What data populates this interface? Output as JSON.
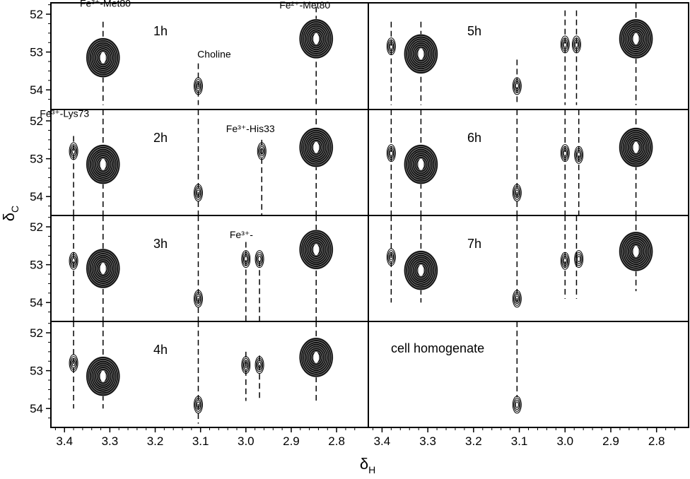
{
  "chart_data": {
    "type": "contour",
    "xlabel": "δ",
    "xlabel_sub": "H",
    "ylabel": "δ",
    "ylabel_sub": "C",
    "x_axis": {
      "reversed": true,
      "range": [
        3.43,
        2.73
      ],
      "ticks": [
        "3.4",
        "3.3",
        "3.2",
        "3.1",
        "3.0",
        "2.9",
        "2.8"
      ]
    },
    "y_axis": {
      "reversed": true,
      "range": [
        51.7,
        54.5
      ],
      "ticks": [
        "52",
        "53",
        "54"
      ]
    },
    "panels": [
      {
        "label": "1h",
        "annotations": [
          {
            "text": "Fe³⁺-Met80",
            "x": 3.31,
            "y": 51.8
          },
          {
            "text": "Choline",
            "x": 3.07,
            "y": 53.15
          },
          {
            "text": "Fe²⁺-Met80",
            "x": 2.87,
            "y": 51.85
          }
        ],
        "peaks": [
          {
            "x": 3.315,
            "y": 53.15,
            "size": "large"
          },
          {
            "x": 3.105,
            "y": 53.9,
            "size": "small"
          },
          {
            "x": 2.845,
            "y": 52.65,
            "size": "large"
          }
        ],
        "guides": [
          {
            "x": 3.315,
            "y1": 52.2,
            "y2": 54.4
          },
          {
            "x": 3.105,
            "y1": 53.3,
            "y2": 54.4
          },
          {
            "x": 2.845,
            "y1": 51.8,
            "y2": 54.4
          }
        ]
      },
      {
        "label": "2h",
        "annotations": [
          {
            "text": "Fe³⁺-Lys73",
            "x": 3.4,
            "y": 51.9
          },
          {
            "text": "Fe³⁺-His33",
            "x": 2.99,
            "y": 52.3
          }
        ],
        "peaks": [
          {
            "x": 3.38,
            "y": 52.8,
            "size": "small"
          },
          {
            "x": 3.315,
            "y": 53.15,
            "size": "large"
          },
          {
            "x": 3.105,
            "y": 53.9,
            "size": "small"
          },
          {
            "x": 2.965,
            "y": 52.8,
            "size": "small"
          },
          {
            "x": 2.845,
            "y": 52.7,
            "size": "large"
          }
        ],
        "guides": [
          {
            "x": 3.38,
            "y1": 52.4,
            "y2": 54.5
          },
          {
            "x": 3.315,
            "y1": 51.7,
            "y2": 54.5
          },
          {
            "x": 3.105,
            "y1": 51.7,
            "y2": 54.5
          },
          {
            "x": 2.965,
            "y1": 52.5,
            "y2": 54.5
          },
          {
            "x": 2.845,
            "y1": 51.7,
            "y2": 54.5
          }
        ]
      },
      {
        "label": "3h",
        "annotations": [
          {
            "text": "Fe³⁺-",
            "x": 3.01,
            "y": 52.3
          }
        ],
        "peaks": [
          {
            "x": 3.38,
            "y": 52.9,
            "size": "small"
          },
          {
            "x": 3.315,
            "y": 53.1,
            "size": "large"
          },
          {
            "x": 3.105,
            "y": 53.9,
            "size": "small"
          },
          {
            "x": 3.0,
            "y": 52.85,
            "size": "small"
          },
          {
            "x": 2.97,
            "y": 52.85,
            "size": "small"
          },
          {
            "x": 2.845,
            "y": 52.6,
            "size": "large"
          }
        ],
        "guides": [
          {
            "x": 3.38,
            "y1": 51.7,
            "y2": 54.5
          },
          {
            "x": 3.315,
            "y1": 51.7,
            "y2": 54.5
          },
          {
            "x": 3.105,
            "y1": 51.7,
            "y2": 54.5
          },
          {
            "x": 3.0,
            "y1": 52.4,
            "y2": 54.5
          },
          {
            "x": 2.97,
            "y1": 52.9,
            "y2": 54.5
          },
          {
            "x": 2.845,
            "y1": 51.7,
            "y2": 54.5
          }
        ]
      },
      {
        "label": "4h",
        "annotations": [],
        "peaks": [
          {
            "x": 3.38,
            "y": 52.8,
            "size": "small"
          },
          {
            "x": 3.315,
            "y": 53.15,
            "size": "large"
          },
          {
            "x": 3.105,
            "y": 53.9,
            "size": "small"
          },
          {
            "x": 3.0,
            "y": 52.85,
            "size": "small"
          },
          {
            "x": 2.97,
            "y": 52.85,
            "size": "small"
          },
          {
            "x": 2.845,
            "y": 52.65,
            "size": "large"
          }
        ],
        "guides": [
          {
            "x": 3.38,
            "y1": 51.7,
            "y2": 54.0
          },
          {
            "x": 3.315,
            "y1": 51.7,
            "y2": 54.0
          },
          {
            "x": 3.105,
            "y1": 51.7,
            "y2": 54.4
          },
          {
            "x": 3.0,
            "y1": 52.5,
            "y2": 53.8
          },
          {
            "x": 2.97,
            "y1": 52.6,
            "y2": 53.8
          },
          {
            "x": 2.845,
            "y1": 51.7,
            "y2": 53.8
          }
        ]
      },
      {
        "label": "5h",
        "annotations": [],
        "peaks": [
          {
            "x": 3.38,
            "y": 52.85,
            "size": "small"
          },
          {
            "x": 3.315,
            "y": 53.05,
            "size": "large"
          },
          {
            "x": 3.105,
            "y": 53.9,
            "size": "small"
          },
          {
            "x": 3.0,
            "y": 52.8,
            "size": "small"
          },
          {
            "x": 2.975,
            "y": 52.8,
            "size": "small"
          },
          {
            "x": 2.845,
            "y": 52.65,
            "size": "large"
          }
        ],
        "guides": [
          {
            "x": 3.38,
            "y1": 52.2,
            "y2": 54.4
          },
          {
            "x": 3.315,
            "y1": 52.2,
            "y2": 54.4
          },
          {
            "x": 3.105,
            "y1": 53.2,
            "y2": 54.4
          },
          {
            "x": 3.0,
            "y1": 51.9,
            "y2": 54.4
          },
          {
            "x": 2.975,
            "y1": 51.9,
            "y2": 54.4
          },
          {
            "x": 2.845,
            "y1": 51.7,
            "y2": 54.4
          }
        ]
      },
      {
        "label": "6h",
        "annotations": [],
        "peaks": [
          {
            "x": 3.38,
            "y": 52.85,
            "size": "small"
          },
          {
            "x": 3.315,
            "y": 53.15,
            "size": "large"
          },
          {
            "x": 3.105,
            "y": 53.9,
            "size": "small"
          },
          {
            "x": 3.0,
            "y": 52.85,
            "size": "small"
          },
          {
            "x": 2.97,
            "y": 52.9,
            "size": "small"
          },
          {
            "x": 2.845,
            "y": 52.7,
            "size": "large"
          }
        ],
        "guides": [
          {
            "x": 3.38,
            "y1": 51.7,
            "y2": 54.5
          },
          {
            "x": 3.315,
            "y1": 51.7,
            "y2": 54.5
          },
          {
            "x": 3.105,
            "y1": 51.7,
            "y2": 54.5
          },
          {
            "x": 3.0,
            "y1": 51.7,
            "y2": 54.5
          },
          {
            "x": 2.97,
            "y1": 51.7,
            "y2": 54.5
          },
          {
            "x": 2.845,
            "y1": 51.7,
            "y2": 54.5
          }
        ]
      },
      {
        "label": "7h",
        "annotations": [],
        "peaks": [
          {
            "x": 3.38,
            "y": 52.8,
            "size": "small"
          },
          {
            "x": 3.315,
            "y": 53.15,
            "size": "large"
          },
          {
            "x": 3.105,
            "y": 53.9,
            "size": "small"
          },
          {
            "x": 3.0,
            "y": 52.9,
            "size": "small"
          },
          {
            "x": 2.97,
            "y": 52.85,
            "size": "small"
          },
          {
            "x": 2.845,
            "y": 52.65,
            "size": "large"
          }
        ],
        "guides": [
          {
            "x": 3.38,
            "y1": 51.7,
            "y2": 54.0
          },
          {
            "x": 3.315,
            "y1": 51.7,
            "y2": 54.0
          },
          {
            "x": 3.105,
            "y1": 51.7,
            "y2": 54.0
          },
          {
            "x": 3.0,
            "y1": 51.7,
            "y2": 53.9
          },
          {
            "x": 2.975,
            "y1": 51.7,
            "y2": 53.9
          },
          {
            "x": 2.845,
            "y1": 51.7,
            "y2": 53.7
          }
        ]
      },
      {
        "label": "cell homogenate",
        "annotations": [],
        "peaks": [
          {
            "x": 3.105,
            "y": 53.9,
            "size": "small"
          }
        ],
        "guides": [
          {
            "x": 3.105,
            "y1": 51.7,
            "y2": 53.7
          }
        ]
      }
    ]
  }
}
